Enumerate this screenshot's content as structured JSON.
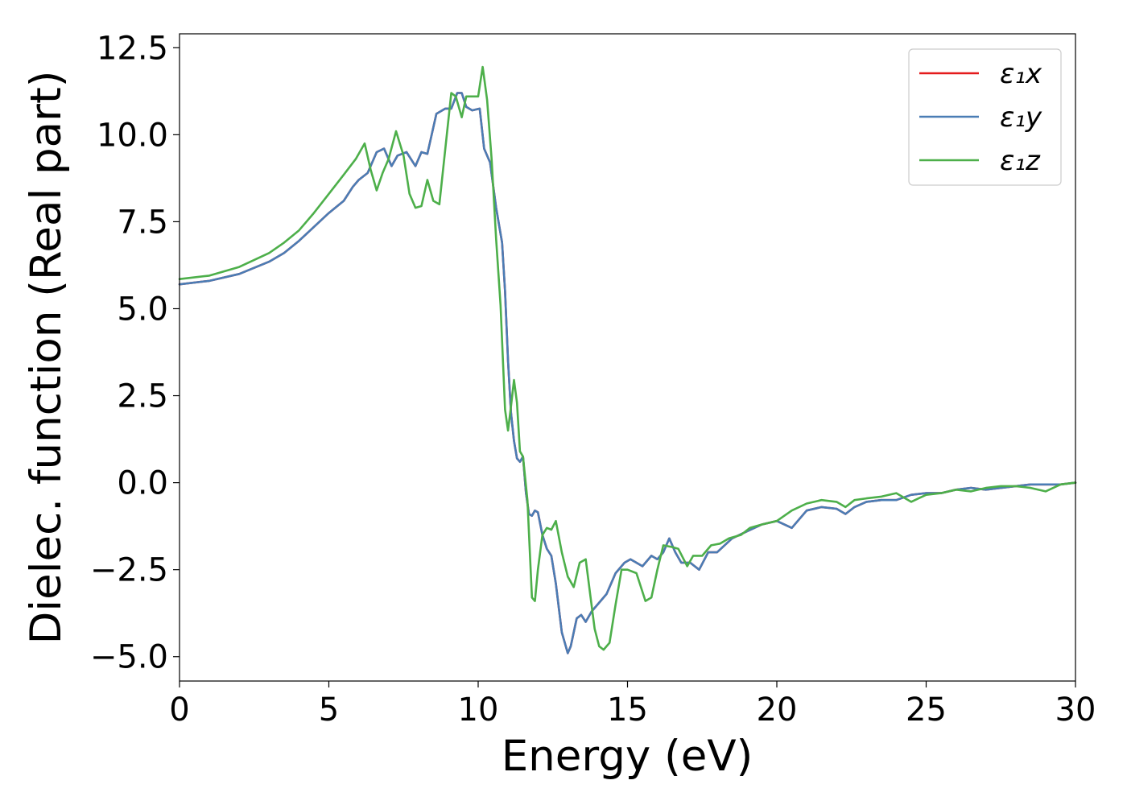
{
  "chart_data": {
    "type": "line",
    "xlabel": "Energy (eV)",
    "ylabel": "Dielec. function (Real part)",
    "xlim": [
      0,
      30
    ],
    "ylim": [
      -5.7,
      12.9
    ],
    "xticks": [
      0,
      5,
      10,
      15,
      20,
      25,
      30
    ],
    "xtick_labels": [
      "0",
      "5",
      "10",
      "15",
      "20",
      "25",
      "30"
    ],
    "yticks": [
      -5.0,
      -2.5,
      0.0,
      2.5,
      5.0,
      7.5,
      10.0,
      12.5
    ],
    "ytick_labels": [
      "−5.0",
      "−2.5",
      "0.0",
      "2.5",
      "5.0",
      "7.5",
      "10.0",
      "12.5"
    ],
    "grid": false,
    "legend_position": "upper right",
    "series": [
      {
        "name": "ε₁x",
        "color": "#e41a1c",
        "x": [
          0,
          1,
          2,
          3,
          3.5,
          4,
          4.5,
          5,
          5.5,
          5.8,
          6.0,
          6.3,
          6.6,
          6.85,
          7.1,
          7.3,
          7.6,
          7.9,
          8.1,
          8.3,
          8.6,
          8.9,
          9.1,
          9.3,
          9.45,
          9.6,
          9.8,
          10.05,
          10.2,
          10.4,
          10.6,
          10.8,
          10.9,
          11.0,
          11.1,
          11.2,
          11.3,
          11.4,
          11.5,
          11.6,
          11.7,
          11.8,
          11.9,
          12.0,
          12.15,
          12.3,
          12.45,
          12.6,
          12.8,
          13.0,
          13.1,
          13.3,
          13.45,
          13.6,
          13.8,
          14.0,
          14.3,
          14.6,
          14.9,
          15.1,
          15.3,
          15.5,
          15.8,
          16.0,
          16.2,
          16.4,
          16.6,
          16.8,
          17.1,
          17.4,
          17.7,
          18.0,
          18.5,
          19.0,
          19.5,
          20.0,
          20.5,
          21.0,
          21.5,
          22.0,
          22.3,
          22.6,
          23.0,
          23.5,
          24.0,
          24.5,
          25.0,
          25.5,
          26.0,
          26.5,
          27.0,
          27.5,
          28.0,
          28.5,
          29.0,
          29.5,
          30.0
        ],
        "y": [
          5.7,
          5.8,
          6.0,
          6.35,
          6.6,
          6.95,
          7.35,
          7.75,
          8.1,
          8.5,
          8.7,
          8.9,
          9.5,
          9.6,
          9.1,
          9.4,
          9.5,
          9.1,
          9.5,
          9.45,
          10.6,
          10.75,
          10.75,
          11.2,
          11.2,
          10.8,
          10.7,
          10.75,
          9.6,
          9.2,
          7.9,
          6.9,
          5.5,
          3.5,
          2.0,
          1.2,
          0.7,
          0.6,
          0.75,
          -0.3,
          -0.9,
          -0.95,
          -0.8,
          -0.85,
          -1.5,
          -1.9,
          -2.1,
          -2.9,
          -4.3,
          -4.9,
          -4.7,
          -3.9,
          -3.8,
          -4.0,
          -3.7,
          -3.5,
          -3.2,
          -2.6,
          -2.3,
          -2.2,
          -2.3,
          -2.4,
          -2.1,
          -2.2,
          -2.0,
          -1.6,
          -2.0,
          -2.3,
          -2.3,
          -2.5,
          -2.0,
          -2.0,
          -1.6,
          -1.4,
          -1.2,
          -1.1,
          -1.3,
          -0.8,
          -0.7,
          -0.75,
          -0.9,
          -0.7,
          -0.55,
          -0.5,
          -0.5,
          -0.35,
          -0.3,
          -0.3,
          -0.2,
          -0.15,
          -0.2,
          -0.15,
          -0.1,
          -0.05,
          -0.05,
          -0.05,
          0.0
        ]
      },
      {
        "name": "ε₁y",
        "color": "#4a7db5",
        "x": [
          0,
          1,
          2,
          3,
          3.5,
          4,
          4.5,
          5,
          5.5,
          5.8,
          6.0,
          6.3,
          6.6,
          6.85,
          7.1,
          7.3,
          7.6,
          7.9,
          8.1,
          8.3,
          8.6,
          8.9,
          9.1,
          9.3,
          9.45,
          9.6,
          9.8,
          10.05,
          10.2,
          10.4,
          10.6,
          10.8,
          10.9,
          11.0,
          11.1,
          11.2,
          11.3,
          11.4,
          11.5,
          11.6,
          11.7,
          11.8,
          11.9,
          12.0,
          12.15,
          12.3,
          12.45,
          12.6,
          12.8,
          13.0,
          13.1,
          13.3,
          13.45,
          13.6,
          13.8,
          14.0,
          14.3,
          14.6,
          14.9,
          15.1,
          15.3,
          15.5,
          15.8,
          16.0,
          16.2,
          16.4,
          16.6,
          16.8,
          17.1,
          17.4,
          17.7,
          18.0,
          18.5,
          19.0,
          19.5,
          20.0,
          20.5,
          21.0,
          21.5,
          22.0,
          22.3,
          22.6,
          23.0,
          23.5,
          24.0,
          24.5,
          25.0,
          25.5,
          26.0,
          26.5,
          27.0,
          27.5,
          28.0,
          28.5,
          29.0,
          29.5,
          30.0
        ],
        "y": [
          5.7,
          5.8,
          6.0,
          6.35,
          6.6,
          6.95,
          7.35,
          7.75,
          8.1,
          8.5,
          8.7,
          8.9,
          9.5,
          9.6,
          9.1,
          9.4,
          9.5,
          9.1,
          9.5,
          9.45,
          10.6,
          10.75,
          10.75,
          11.2,
          11.2,
          10.8,
          10.7,
          10.75,
          9.6,
          9.2,
          7.9,
          6.9,
          5.5,
          3.5,
          2.0,
          1.2,
          0.7,
          0.6,
          0.75,
          -0.3,
          -0.9,
          -0.95,
          -0.8,
          -0.85,
          -1.5,
          -1.9,
          -2.1,
          -2.9,
          -4.3,
          -4.9,
          -4.7,
          -3.9,
          -3.8,
          -4.0,
          -3.7,
          -3.5,
          -3.2,
          -2.6,
          -2.3,
          -2.2,
          -2.3,
          -2.4,
          -2.1,
          -2.2,
          -2.0,
          -1.6,
          -2.0,
          -2.3,
          -2.3,
          -2.5,
          -2.0,
          -2.0,
          -1.6,
          -1.4,
          -1.2,
          -1.1,
          -1.3,
          -0.8,
          -0.7,
          -0.75,
          -0.9,
          -0.7,
          -0.55,
          -0.5,
          -0.5,
          -0.35,
          -0.3,
          -0.3,
          -0.2,
          -0.15,
          -0.2,
          -0.15,
          -0.1,
          -0.05,
          -0.05,
          -0.05,
          0.0
        ]
      },
      {
        "name": "ε₁z",
        "color": "#4daf4a",
        "x": [
          0,
          1,
          2,
          3,
          3.5,
          4,
          4.5,
          5,
          5.5,
          5.9,
          6.2,
          6.4,
          6.6,
          6.8,
          7.0,
          7.25,
          7.5,
          7.7,
          7.9,
          8.1,
          8.3,
          8.5,
          8.7,
          8.9,
          9.1,
          9.25,
          9.45,
          9.6,
          9.8,
          10.0,
          10.15,
          10.3,
          10.45,
          10.6,
          10.75,
          10.9,
          11.0,
          11.1,
          11.2,
          11.3,
          11.4,
          11.5,
          11.65,
          11.8,
          11.9,
          12.0,
          12.15,
          12.3,
          12.45,
          12.6,
          12.8,
          13.0,
          13.2,
          13.4,
          13.6,
          13.75,
          13.9,
          14.05,
          14.2,
          14.4,
          14.6,
          14.8,
          15.0,
          15.3,
          15.6,
          15.8,
          16.0,
          16.2,
          16.5,
          16.7,
          17.0,
          17.2,
          17.5,
          17.8,
          18.1,
          18.4,
          18.8,
          19.1,
          19.5,
          20.0,
          20.5,
          21.0,
          21.5,
          22.0,
          22.3,
          22.6,
          23.0,
          23.5,
          24.0,
          24.5,
          25.0,
          25.5,
          26.0,
          26.5,
          27.0,
          27.5,
          28.0,
          28.5,
          29.0,
          29.5,
          30.0
        ],
        "y": [
          5.85,
          5.95,
          6.2,
          6.6,
          6.9,
          7.25,
          7.75,
          8.3,
          8.85,
          9.3,
          9.75,
          9.0,
          8.4,
          8.9,
          9.3,
          10.1,
          9.4,
          8.3,
          7.9,
          7.95,
          8.7,
          8.1,
          8.0,
          9.6,
          11.2,
          11.1,
          10.5,
          11.1,
          11.1,
          11.1,
          11.95,
          11.0,
          9.3,
          7.0,
          5.1,
          2.1,
          1.5,
          2.2,
          2.95,
          2.3,
          0.9,
          0.75,
          -0.5,
          -3.3,
          -3.4,
          -2.5,
          -1.5,
          -1.3,
          -1.35,
          -1.1,
          -2.0,
          -2.7,
          -3.0,
          -2.3,
          -2.2,
          -3.2,
          -4.2,
          -4.7,
          -4.8,
          -4.6,
          -3.5,
          -2.5,
          -2.5,
          -2.6,
          -3.4,
          -3.3,
          -2.5,
          -1.8,
          -1.85,
          -1.9,
          -2.4,
          -2.1,
          -2.1,
          -1.8,
          -1.75,
          -1.6,
          -1.5,
          -1.3,
          -1.2,
          -1.1,
          -0.8,
          -0.6,
          -0.5,
          -0.55,
          -0.7,
          -0.5,
          -0.45,
          -0.4,
          -0.3,
          -0.55,
          -0.35,
          -0.3,
          -0.2,
          -0.25,
          -0.15,
          -0.1,
          -0.1,
          -0.15,
          -0.25,
          -0.05,
          0.0
        ]
      }
    ]
  }
}
